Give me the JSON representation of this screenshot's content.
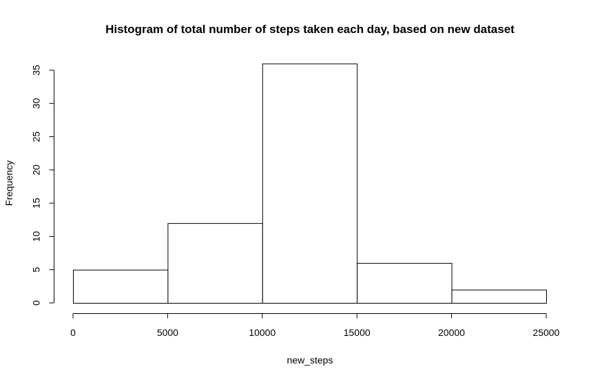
{
  "chart_data": {
    "type": "bar",
    "subtype": "histogram",
    "title": "Histogram of total number of steps taken each day, based on new dataset",
    "xlabel": "new_steps",
    "ylabel": "Frequency",
    "bins": [
      {
        "start": 0,
        "end": 5000,
        "count": 5
      },
      {
        "start": 5000,
        "end": 10000,
        "count": 12
      },
      {
        "start": 10000,
        "end": 15000,
        "count": 36
      },
      {
        "start": 15000,
        "end": 20000,
        "count": 6
      },
      {
        "start": 20000,
        "end": 25000,
        "count": 2
      }
    ],
    "xticks": [
      0,
      5000,
      10000,
      15000,
      20000,
      25000
    ],
    "yticks": [
      0,
      5,
      10,
      15,
      20,
      25,
      30,
      35
    ],
    "xlim": [
      0,
      25000
    ],
    "ylim": [
      0,
      36
    ],
    "grid": false,
    "bar_fill": "#ffffff",
    "bar_stroke": "#000000"
  }
}
